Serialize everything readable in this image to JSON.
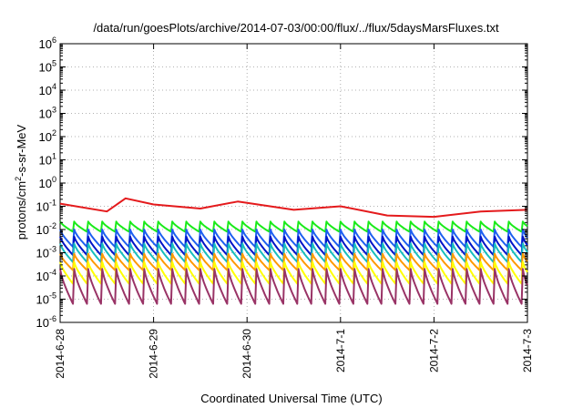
{
  "chart_data": {
    "type": "line",
    "title": "/data/run/goesPlots/archive/2014-07-03/00:00/flux/../flux/5daysMarsFluxes.txt",
    "xlabel": "Coordinated Universal Time (UTC)",
    "ylabel": "protons/cm2-s-sr-MeV",
    "ylabel_parts": {
      "pre": "protons/cm",
      "sup": "2",
      "post": "-s-sr-MeV"
    },
    "yscale": "log",
    "ylim_exponents": [
      -6,
      6
    ],
    "y_tick_base": "10",
    "y_tick_exponents": [
      "-6",
      "-5",
      "-4",
      "-3",
      "-2",
      "-1",
      "0",
      "1",
      "2",
      "3",
      "4",
      "5",
      "6"
    ],
    "xlim": [
      "2014-06-28",
      "2014-07-03"
    ],
    "x_ticks": [
      "2014-6-28",
      "2014-6-29",
      "2014-6-30",
      "2014-7-1",
      "2014-7-2",
      "2014-7-3"
    ],
    "grid": true,
    "legend": "none",
    "sawtooth_period_hours": 3.6,
    "series": [
      {
        "color": "#e41a1c",
        "times": [
          "2014-06-28 00:00",
          "2014-06-28 12:00",
          "2014-06-28 16:48",
          "2014-06-29 00:00",
          "2014-06-29 12:00",
          "2014-06-29 21:36",
          "2014-06-30 00:00",
          "2014-06-30 12:00",
          "2014-07-01 00:00",
          "2014-07-01 12:00",
          "2014-07-02 00:00",
          "2014-07-02 12:00",
          "2014-07-03 00:00"
        ],
        "values": [
          0.13,
          0.06,
          0.22,
          0.12,
          0.08,
          0.16,
          0.14,
          0.07,
          0.1,
          0.04,
          0.035,
          0.06,
          0.07
        ]
      },
      {
        "color": "#1aeb1a",
        "peak": 0.022,
        "trough": 0.0075
      },
      {
        "color": "#1e5ff0",
        "peak": 0.01,
        "trough": 0.0016
      },
      {
        "color": "#0014c8",
        "peak": 0.005,
        "trough": 0.0007
      },
      {
        "color": "#17bebe",
        "peak": 0.0025,
        "trough": 0.00035
      },
      {
        "color": "#ff9900",
        "peak": 0.0009,
        "trough": 0.00016
      },
      {
        "color": "#ffff00",
        "peak": 0.0004,
        "trough": 4e-05
      },
      {
        "color": "#993366",
        "peak": 0.0002,
        "trough": 5e-06
      }
    ]
  }
}
